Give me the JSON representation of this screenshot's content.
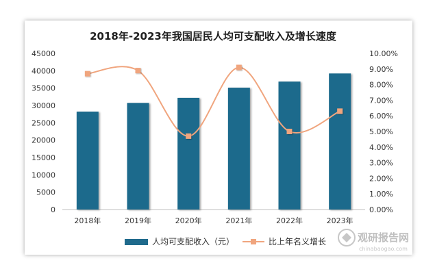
{
  "chart_data": {
    "type": "bar",
    "title": "2018年-2023年我国居民人均可支配收入及增长速度",
    "categories": [
      "2018年",
      "2019年",
      "2020年",
      "2021年",
      "2022年",
      "2023年"
    ],
    "series": [
      {
        "name": "人均可支配收入（元）",
        "type": "bar",
        "axis": "left",
        "values": [
          28228,
          30733,
          32189,
          35128,
          36883,
          39218
        ],
        "color": "#1f6a8c"
      },
      {
        "name": "比上年名义增长",
        "type": "line",
        "axis": "right",
        "values": [
          8.7,
          8.9,
          4.7,
          9.1,
          5.0,
          6.3
        ],
        "color": "#f0a57e"
      }
    ],
    "left_axis": {
      "min": 0,
      "max": 45000,
      "step": 5000
    },
    "right_axis": {
      "min": 0,
      "max": 10,
      "step": 1,
      "format": "%"
    },
    "legend_position": "bottom",
    "grid": false
  },
  "watermark": {
    "brand": "观研报告网",
    "url": "chinabaogao.com"
  }
}
